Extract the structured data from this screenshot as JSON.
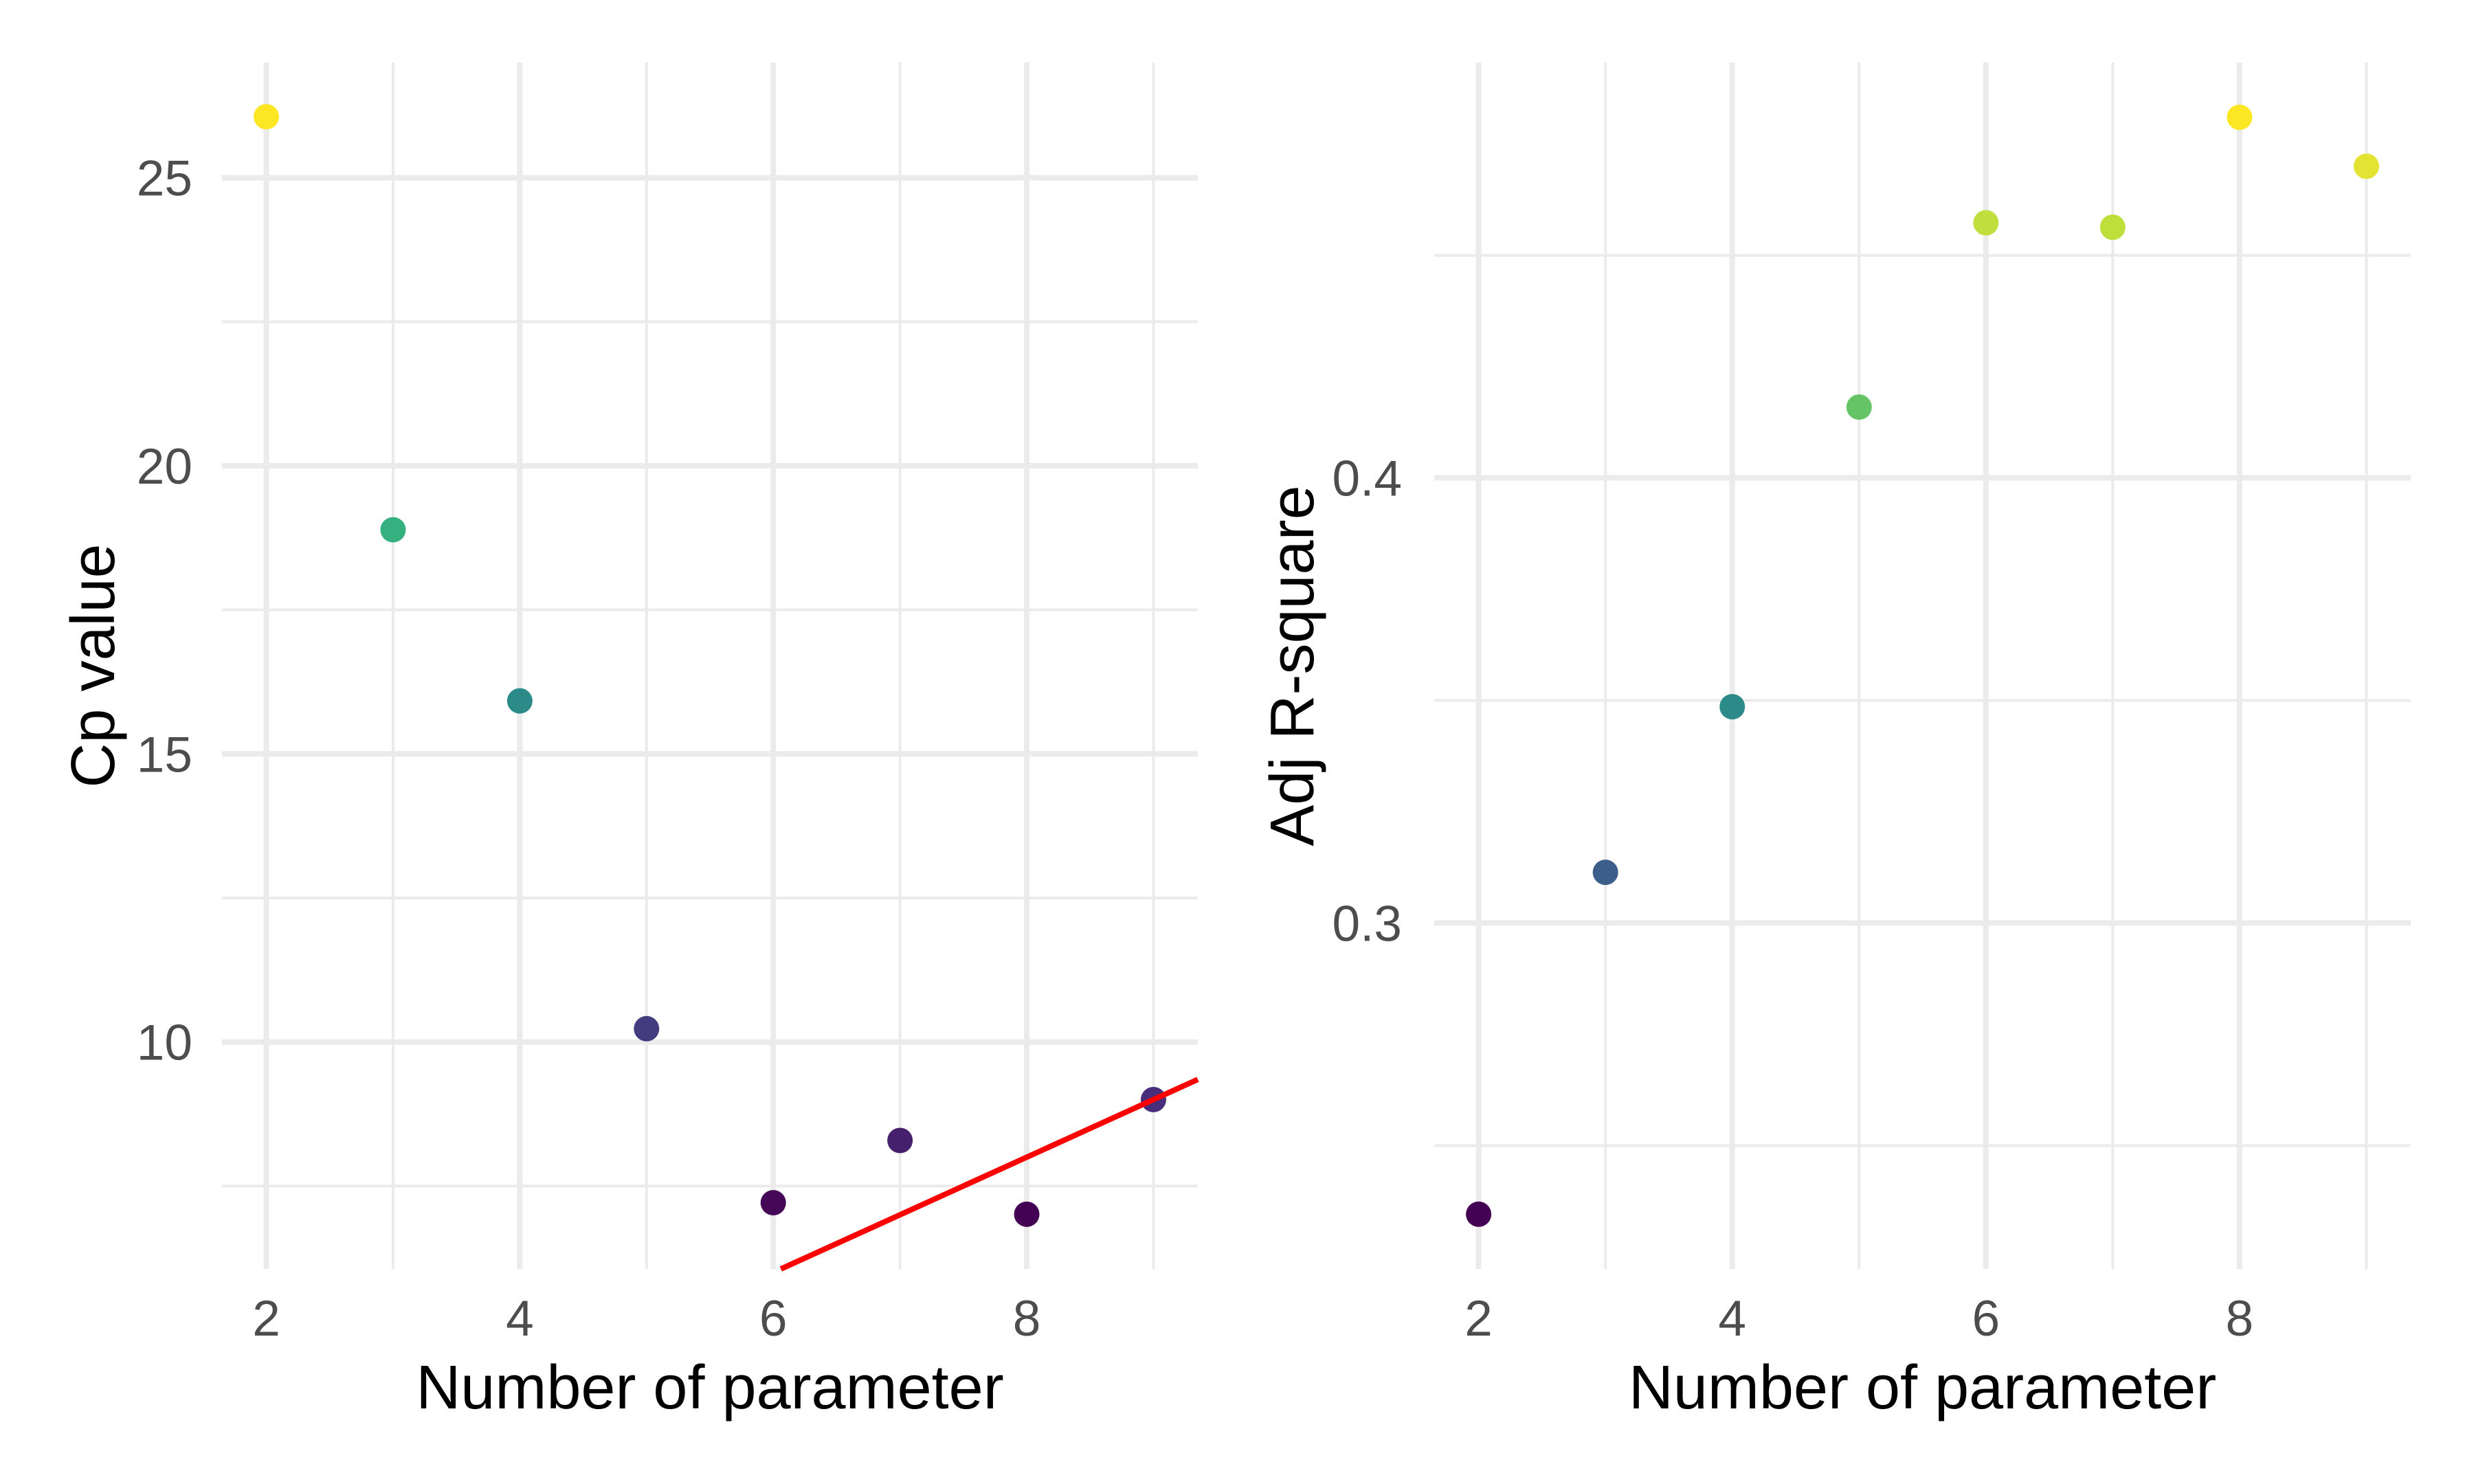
{
  "chart_data": [
    {
      "type": "scatter",
      "panel": "left",
      "title": "",
      "xlabel": "Number of parameter",
      "ylabel": "Cp value",
      "xlim": [
        1.65,
        9.35
      ],
      "ylim": [
        6.06,
        27.0
      ],
      "x_ticks": [
        2,
        4,
        6,
        8
      ],
      "x_tick_labels": [
        "2",
        "4",
        "6",
        "8"
      ],
      "x_minor_ticks": [
        3,
        5,
        7,
        9
      ],
      "y_ticks": [
        10,
        15,
        20,
        25
      ],
      "y_tick_labels": [
        "10",
        "15",
        "20",
        "25"
      ],
      "y_minor_ticks": [
        7.5,
        12.5,
        17.5,
        22.5
      ],
      "grid": true,
      "legend": "none",
      "color_scale": "viridis (mapped to y value)",
      "points": [
        {
          "x": 2,
          "y": 26.06,
          "color": "#FDE725"
        },
        {
          "x": 3,
          "y": 18.89,
          "color": "#37B07F"
        },
        {
          "x": 4,
          "y": 15.92,
          "color": "#2C8A89"
        },
        {
          "x": 5,
          "y": 10.23,
          "color": "#433D80"
        },
        {
          "x": 6,
          "y": 7.21,
          "color": "#450757"
        },
        {
          "x": 7,
          "y": 8.29,
          "color": "#46206C"
        },
        {
          "x": 8,
          "y": 7.01,
          "color": "#440154"
        },
        {
          "x": 9,
          "y": 9.0,
          "color": "#472D7B"
        }
      ],
      "reference_line": {
        "intercept": 0,
        "slope": 1,
        "color": "#FF0000",
        "description": "Cp = p"
      }
    },
    {
      "type": "scatter",
      "panel": "right",
      "title": "",
      "xlabel": "Number of parameter",
      "ylabel": "Adj R-square",
      "xlim": [
        1.65,
        9.35
      ],
      "ylim": [
        0.2223,
        0.4933
      ],
      "x_ticks": [
        2,
        4,
        6,
        8
      ],
      "x_tick_labels": [
        "2",
        "4",
        "6",
        "8"
      ],
      "x_minor_ticks": [
        3,
        5,
        7,
        9
      ],
      "y_ticks": [
        0.3,
        0.4
      ],
      "y_tick_labels": [
        "0.3",
        "0.4"
      ],
      "y_minor_ticks": [
        0.25,
        0.35,
        0.45
      ],
      "grid": true,
      "legend": "none",
      "color_scale": "viridis (mapped to y value)",
      "points": [
        {
          "x": 2,
          "y": 0.2346,
          "color": "#440154"
        },
        {
          "x": 3,
          "y": 0.3114,
          "color": "#3B5E8B"
        },
        {
          "x": 4,
          "y": 0.3486,
          "color": "#2C8A89"
        },
        {
          "x": 5,
          "y": 0.4159,
          "color": "#65C466"
        },
        {
          "x": 6,
          "y": 0.4573,
          "color": "#C0DF3E"
        },
        {
          "x": 7,
          "y": 0.4563,
          "color": "#BDDF3A"
        },
        {
          "x": 8,
          "y": 0.481,
          "color": "#FDE725"
        },
        {
          "x": 9,
          "y": 0.47,
          "color": "#E2E333"
        }
      ]
    }
  ]
}
